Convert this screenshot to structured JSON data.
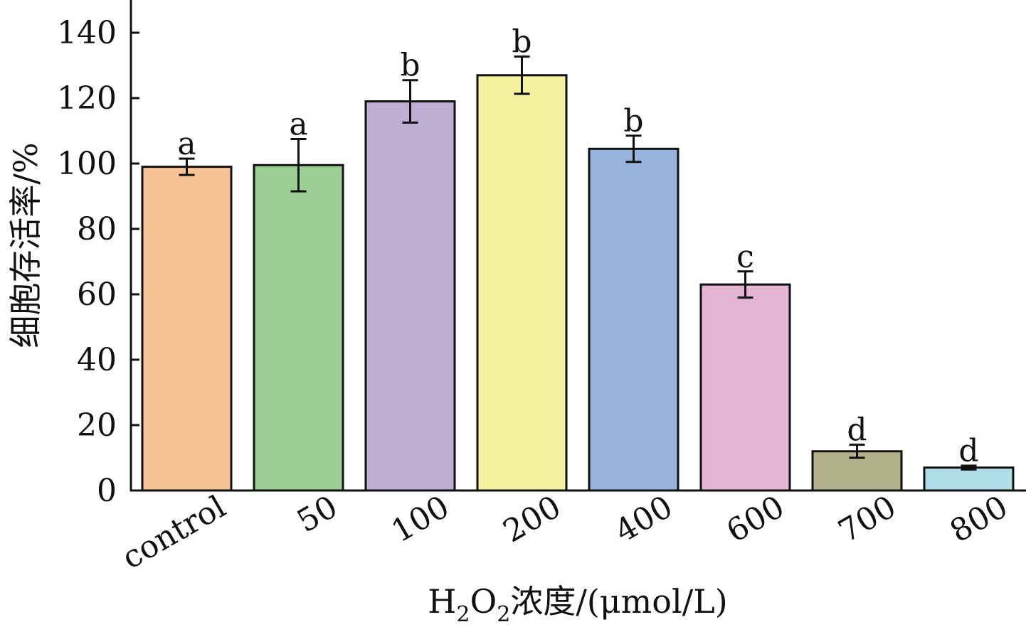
{
  "chart_data": {
    "type": "bar",
    "title": "",
    "xlabel_parts": {
      "h": "H",
      "sub1": "2",
      "o": "O",
      "sub2": "2",
      "rest": "浓度/(μmol/L)"
    },
    "ylabel": "细胞存活率/%",
    "ylim": [
      0,
      150
    ],
    "yticks": [
      0,
      20,
      40,
      60,
      80,
      100,
      120,
      140
    ],
    "categories": [
      "control",
      "50",
      "100",
      "200",
      "400",
      "600",
      "700",
      "800"
    ],
    "values": [
      99,
      99.5,
      119,
      127,
      104.5,
      63,
      12,
      7
    ],
    "errors": [
      2.5,
      8,
      6.5,
      5.7,
      4,
      4,
      2,
      0.6
    ],
    "significance": [
      "a",
      "a",
      "b",
      "b",
      "b",
      "c",
      "d",
      "d"
    ],
    "colors": [
      "#f5c394",
      "#9bcf93",
      "#bfaed3",
      "#f4f29e",
      "#98b3dc",
      "#e3b5d3",
      "#b2b38d",
      "#aedde6"
    ],
    "grid": false,
    "legend": "none"
  }
}
